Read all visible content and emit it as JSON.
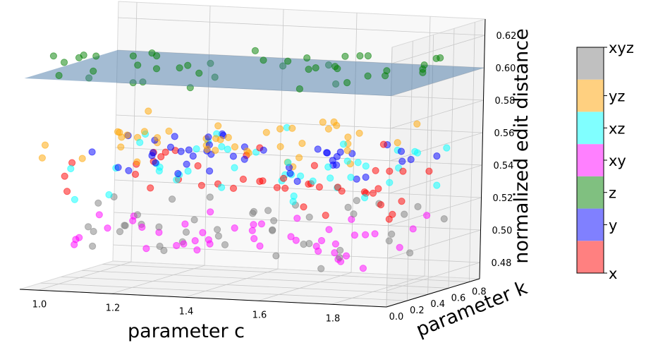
{
  "chart_data": {
    "type": "scatter",
    "title": "",
    "xlabel": "parameter c",
    "ylabel": "parameter k",
    "zlabel": "normalized edit distance",
    "x_ticks": [
      "1.0",
      "1.2",
      "1.4",
      "1.6",
      "1.8"
    ],
    "y_ticks": [
      "0.0",
      "0.2",
      "0.4",
      "0.6",
      "0.8"
    ],
    "z_ticks": [
      "0.48",
      "0.50",
      "0.52",
      "0.54",
      "0.56",
      "0.58",
      "0.60",
      "0.62"
    ],
    "xlim": [
      0.95,
      1.95
    ],
    "ylim": [
      0.0,
      0.9
    ],
    "zlim": [
      0.47,
      0.63
    ],
    "grid": true,
    "plane": {
      "z": 0.6,
      "color": "#4a7aa8"
    },
    "series": [
      {
        "name": "x",
        "color": "#ff0000",
        "z_center": 0.535,
        "z_spread": 0.02
      },
      {
        "name": "y",
        "color": "#0000ff",
        "z_center": 0.55,
        "z_spread": 0.008
      },
      {
        "name": "z",
        "color": "#008000",
        "z_center": 0.605,
        "z_spread": 0.008
      },
      {
        "name": "xy",
        "color": "#ff00ff",
        "z_center": 0.5,
        "z_spread": 0.01
      },
      {
        "name": "xz",
        "color": "#00ffff",
        "z_center": 0.54,
        "z_spread": 0.02
      },
      {
        "name": "yz",
        "color": "#ffa500",
        "z_center": 0.56,
        "z_spread": 0.01
      },
      {
        "name": "xyz",
        "color": "#808080",
        "z_center": 0.505,
        "z_spread": 0.015
      }
    ],
    "colorbar": {
      "labels": [
        "x",
        "y",
        "z",
        "xy",
        "xz",
        "yz",
        "xyz"
      ],
      "colors": [
        "#ff8080",
        "#8080ff",
        "#80c080",
        "#ff80ff",
        "#80ffff",
        "#ffd080",
        "#c0c0c0"
      ]
    }
  }
}
